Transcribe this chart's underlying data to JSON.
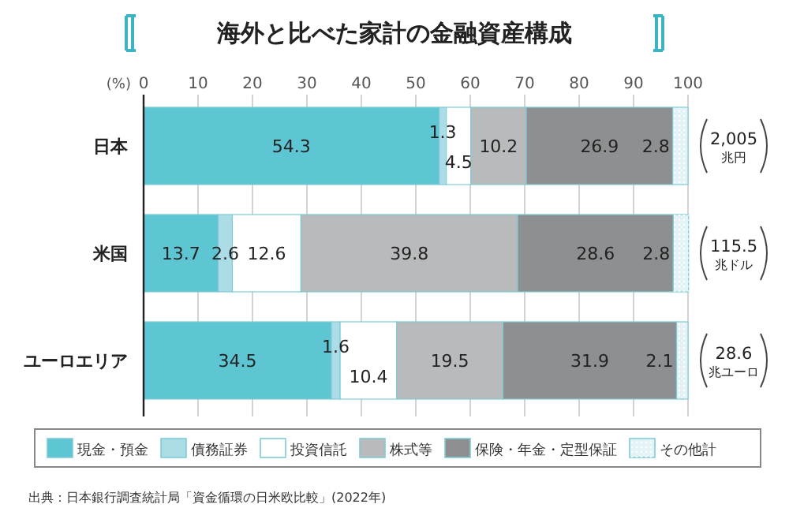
{
  "chart_data": {
    "type": "bar",
    "orientation": "horizontal",
    "stacked": true,
    "title": "海外と比べた家計の金融資産構成",
    "xlabel": "(%)",
    "categories": [
      "日本",
      "米国",
      "ユーロエリア"
    ],
    "series": [
      {
        "name": "現金・預金",
        "color": "#5ec5d3",
        "values": [
          54.3,
          13.7,
          34.5
        ]
      },
      {
        "name": "債務証券",
        "color": "#acdde7",
        "values": [
          1.3,
          2.6,
          1.6
        ]
      },
      {
        "name": "投資信託",
        "color": "#ffffff",
        "values": [
          4.5,
          12.6,
          10.4
        ]
      },
      {
        "name": "株式等",
        "color": "#b9babc",
        "values": [
          10.2,
          39.8,
          19.5
        ]
      },
      {
        "name": "保険・年金・定型保証",
        "color": "#8e8f91",
        "values": [
          26.9,
          28.6,
          31.9
        ]
      },
      {
        "name": "その他計",
        "color": "#e3f3f7",
        "values": [
          2.8,
          2.8,
          2.1
        ]
      }
    ],
    "xlim": [
      0,
      100
    ],
    "xticks": [
      0,
      10,
      20,
      30,
      40,
      50,
      60,
      70,
      80,
      90,
      100
    ],
    "grid": "x",
    "legend": "bottom",
    "data_labels": true,
    "annotations": [
      "2,005 兆円",
      "115.5 兆ドル",
      "28.6 兆ユーロ",
      "出典：日本銀行調査統計局「資金循環の日米欧比較」(2022年)"
    ]
  }
}
